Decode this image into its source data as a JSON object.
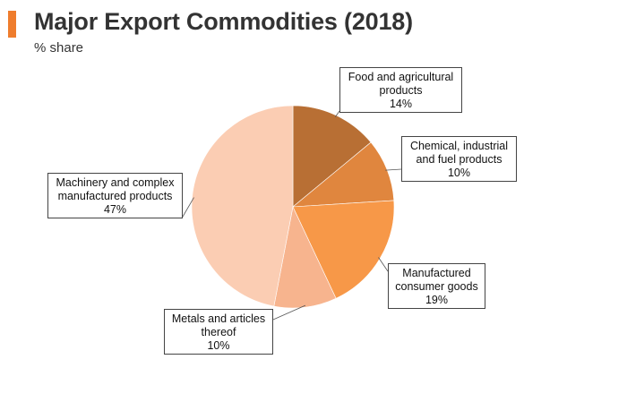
{
  "header": {
    "title": "Major Export Commodities (2018)",
    "subtitle": "% share",
    "accent_color": "#EF7D2D"
  },
  "chart_data": {
    "type": "pie",
    "title": "Major Export Commodities (2018)",
    "subtitle": "% share",
    "start": "12 o'clock, clockwise",
    "slices": [
      {
        "name": "Food and agricultural products",
        "lines": [
          "Food and agricultural",
          "products"
        ],
        "value": 14,
        "display": "14%",
        "color": "#B86F34"
      },
      {
        "name": "Chemical, industrial and fuel products",
        "lines": [
          "Chemical, industrial",
          "and fuel products"
        ],
        "value": 10,
        "display": "10%",
        "color": "#E0863E"
      },
      {
        "name": "Manufactured consumer goods",
        "lines": [
          "Manufactured",
          "consumer goods"
        ],
        "value": 19,
        "display": "19%",
        "color": "#F79848"
      },
      {
        "name": "Metals and articles thereof",
        "lines": [
          "Metals and articles",
          "thereof"
        ],
        "value": 10,
        "display": "10%",
        "color": "#F7B48E"
      },
      {
        "name": "Machinery and complex manufactured products",
        "lines": [
          "Machinery and complex",
          "manufactured products"
        ],
        "value": 47,
        "display": "47%",
        "color": "#FBCDB3"
      }
    ]
  }
}
